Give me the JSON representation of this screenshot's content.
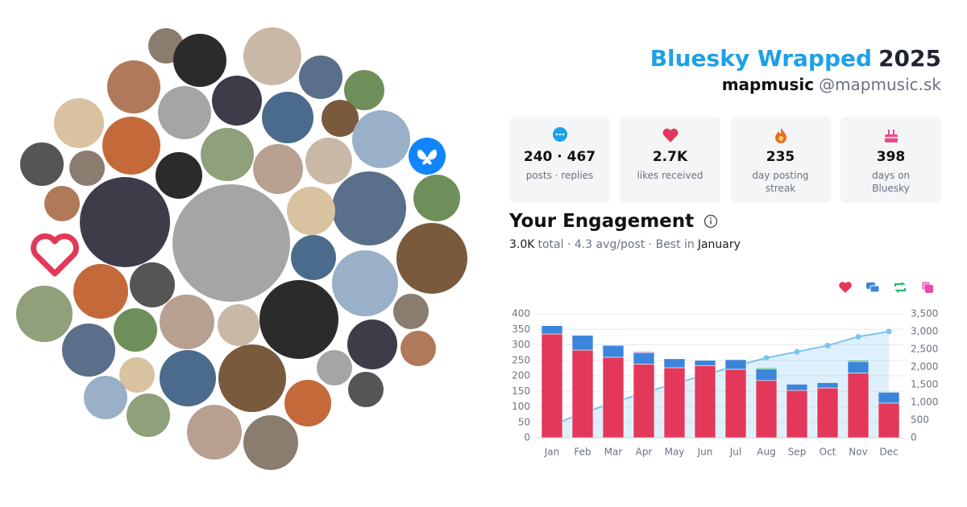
{
  "header": {
    "title": "Bluesky Wrapped",
    "year": "2025",
    "name": "mapmusic",
    "handle": "@mapmusic.sk"
  },
  "stats": [
    {
      "value": "240 · 467",
      "label": "posts · replies"
    },
    {
      "value": "2.7K",
      "label": "likes received"
    },
    {
      "value": "235",
      "label": "day posting streak"
    },
    {
      "value": "398",
      "label": "days on Bluesky"
    }
  ],
  "engagement": {
    "title": "Your Engagement",
    "summary": [
      "3.0K",
      "total · 4.3 avg/post · Best in",
      "January"
    ]
  },
  "chart_data": {
    "type": "bar",
    "stacked": true,
    "categories": [
      "Jan",
      "Feb",
      "Mar",
      "Apr",
      "May",
      "Jun",
      "Jul",
      "Aug",
      "Sep",
      "Oct",
      "Nov",
      "Dec"
    ],
    "series": [
      {
        "color": "#e3385a",
        "values": [
          335,
          283,
          260,
          238,
          226,
          233,
          221,
          185,
          153,
          161,
          209,
          112
        ]
      },
      {
        "color": "#3b86dc",
        "values": [
          27,
          48,
          38,
          37,
          29,
          17,
          31,
          37,
          20,
          17,
          37,
          35
        ]
      },
      {
        "color": "#2fb86e",
        "values": [
          1,
          1,
          0,
          1,
          0,
          0,
          0,
          4,
          0,
          0,
          4,
          0
        ]
      },
      {
        "color": "#e84aa8",
        "values": [
          0,
          0,
          0,
          3,
          0,
          0,
          0,
          0,
          0,
          0,
          0,
          0
        ]
      },
      {
        "type": "line",
        "axis": "y2",
        "color": "#7cc4ee",
        "values": [
          363,
          695,
          993,
          1272,
          1527,
          1777,
          2029,
          2255,
          2428,
          2606,
          2856,
          3003
        ]
      }
    ],
    "ylim": [
      0,
      400
    ],
    "yticks": [
      0,
      50,
      100,
      150,
      200,
      250,
      300,
      350,
      400
    ],
    "y2lim": [
      0,
      3500
    ],
    "y2ticks": [
      0,
      500,
      {
        "value": 1000,
        "label": "1,000"
      },
      {
        "value": 1500,
        "label": "1,500"
      },
      {
        "value": 2000,
        "label": "2,000"
      },
      {
        "value": 2500,
        "label": "2,500"
      },
      {
        "value": 3000,
        "label": "3,000"
      },
      {
        "value": 3500,
        "label": "3,500"
      }
    ],
    "grid": true
  }
}
